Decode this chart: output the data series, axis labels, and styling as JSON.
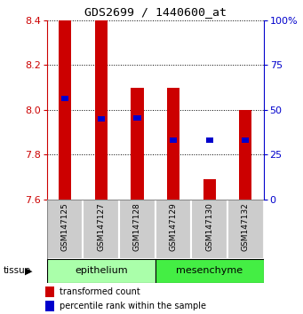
{
  "title": "GDS2699 / 1440600_at",
  "samples": [
    "GSM147125",
    "GSM147127",
    "GSM147128",
    "GSM147129",
    "GSM147130",
    "GSM147132"
  ],
  "bar_bottom": 7.6,
  "bar_tops": [
    8.4,
    8.4,
    8.1,
    8.1,
    7.69,
    8.0
  ],
  "percentile_values": [
    8.05,
    7.96,
    7.965,
    7.865,
    7.865,
    7.865
  ],
  "ylim": [
    7.6,
    8.4
  ],
  "y_ticks": [
    7.6,
    7.8,
    8.0,
    8.2,
    8.4
  ],
  "right_ticks": [
    0,
    25,
    50,
    75,
    100
  ],
  "right_tick_positions": [
    7.6,
    7.8,
    8.0,
    8.2,
    8.4
  ],
  "bar_color": "#cc0000",
  "percentile_color": "#0000cc",
  "epithelium_color": "#aaffaa",
  "mesenchyme_color": "#44ee44",
  "sample_box_color": "#cccccc",
  "left_tick_color": "#cc0000",
  "right_tick_color": "#0000cc",
  "bar_width": 0.35,
  "tissue_label": "tissue",
  "legend_bar_label": "transformed count",
  "legend_pct_label": "percentile rank within the sample",
  "epithelium_samples": 3,
  "mesenchyme_samples": 3
}
